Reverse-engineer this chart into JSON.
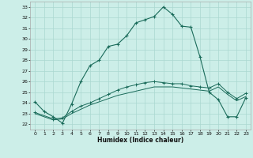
{
  "xlabel": "Humidex (Indice chaleur)",
  "xlim": [
    -0.5,
    23.5
  ],
  "ylim": [
    21.5,
    33.5
  ],
  "xticks": [
    0,
    1,
    2,
    3,
    4,
    5,
    6,
    7,
    8,
    9,
    10,
    11,
    12,
    13,
    14,
    15,
    16,
    17,
    18,
    19,
    20,
    21,
    22,
    23
  ],
  "yticks": [
    22,
    23,
    24,
    25,
    26,
    27,
    28,
    29,
    30,
    31,
    32,
    33
  ],
  "bg_color": "#cceee8",
  "grid_color": "#aad8d0",
  "line_color": "#1a6b5a",
  "line1_x": [
    0,
    1,
    2,
    3,
    4,
    5,
    6,
    7,
    8,
    9,
    10,
    11,
    12,
    13,
    14,
    15,
    16,
    17,
    18,
    19,
    20,
    21,
    22,
    23
  ],
  "line1_y": [
    24.1,
    23.2,
    22.7,
    22.1,
    23.9,
    26.0,
    27.5,
    28.0,
    29.3,
    29.5,
    30.3,
    31.5,
    31.8,
    32.1,
    33.0,
    32.3,
    31.2,
    31.1,
    28.3,
    25.0,
    24.3,
    22.7,
    22.7,
    24.5
  ],
  "line2_x": [
    0,
    2,
    3,
    4,
    5,
    6,
    7,
    8,
    9,
    10,
    11,
    12,
    13,
    14,
    15,
    16,
    17,
    18,
    19,
    20,
    21,
    22,
    23
  ],
  "line2_y": [
    23.1,
    22.5,
    22.6,
    23.2,
    23.7,
    24.0,
    24.4,
    24.8,
    25.2,
    25.5,
    25.7,
    25.9,
    26.0,
    25.9,
    25.8,
    25.8,
    25.6,
    25.5,
    25.4,
    25.8,
    25.0,
    24.4,
    24.9
  ],
  "line3_x": [
    0,
    2,
    3,
    4,
    5,
    6,
    7,
    8,
    9,
    10,
    11,
    12,
    13,
    14,
    15,
    16,
    17,
    18,
    19,
    20,
    21,
    22,
    23
  ],
  "line3_y": [
    23.0,
    22.4,
    22.5,
    23.0,
    23.4,
    23.8,
    24.1,
    24.4,
    24.7,
    24.9,
    25.1,
    25.3,
    25.5,
    25.5,
    25.5,
    25.4,
    25.3,
    25.2,
    25.1,
    25.5,
    24.8,
    24.2,
    24.6
  ]
}
